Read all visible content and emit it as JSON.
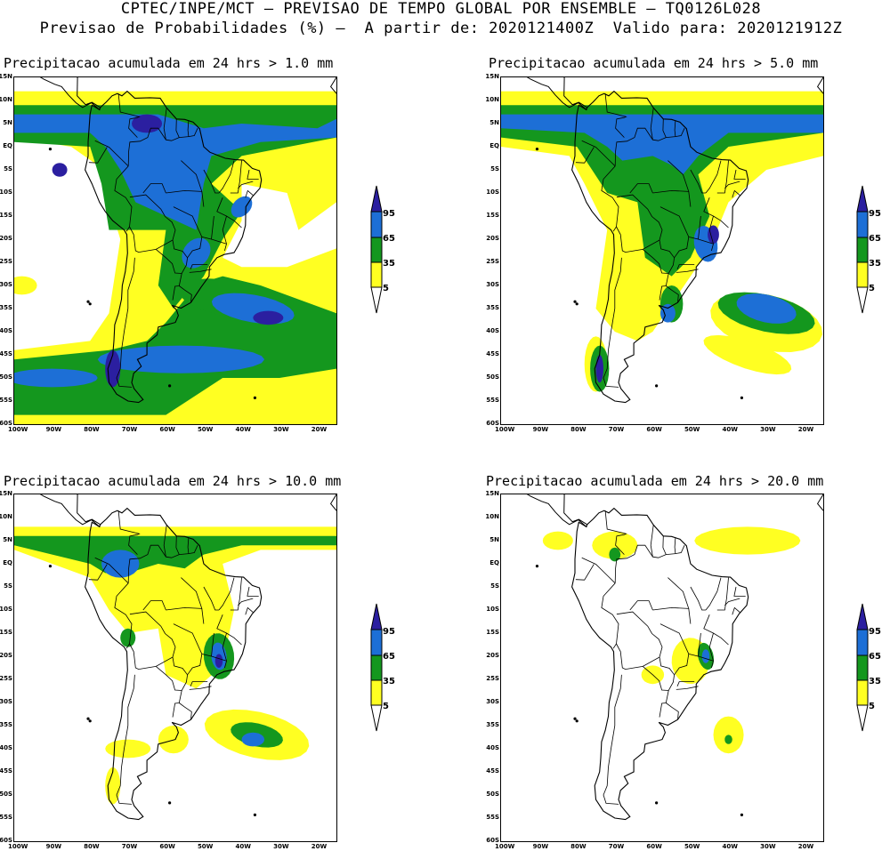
{
  "header": {
    "line1": "CPTEC/INPE/MCT — PREVISAO DE TEMPO GLOBAL POR ENSEMBLE — TQ0126L028",
    "line2": "Previsao de Probabilidades (%) —  A partir de: 2020121400Z  Valido para: 2020121912Z"
  },
  "lat_labels": [
    "15N",
    "10N",
    "5N",
    "EQ",
    "5S",
    "10S",
    "15S",
    "20S",
    "25S",
    "30S",
    "35S",
    "40S",
    "45S",
    "50S",
    "55S",
    "60S"
  ],
  "lon_labels": [
    "100W",
    "90W",
    "80W",
    "70W",
    "60W",
    "50W",
    "40W",
    "30W",
    "20W"
  ],
  "legend": {
    "levels": [
      "95",
      "65",
      "35",
      "5"
    ],
    "colors": [
      "#2b1fa0",
      "#1d6fd6",
      "#14971e",
      "#ffff22"
    ]
  },
  "panels": [
    {
      "title": "Precipitacao acumulada em 24 hrs > 1.0 mm",
      "threshold_mm": 1.0
    },
    {
      "title": "Precipitacao acumulada em 24 hrs > 5.0 mm",
      "threshold_mm": 5.0
    },
    {
      "title": "Precipitacao acumulada em 24 hrs > 10.0 mm",
      "threshold_mm": 10.0
    },
    {
      "title": "Precipitacao acumulada em 24 hrs > 20.0 mm",
      "threshold_mm": 20.0
    }
  ],
  "colors": {
    "yellow": "#ffff22",
    "green": "#14971e",
    "blue": "#1d6fd6",
    "darkblue": "#2b1fa0"
  }
}
